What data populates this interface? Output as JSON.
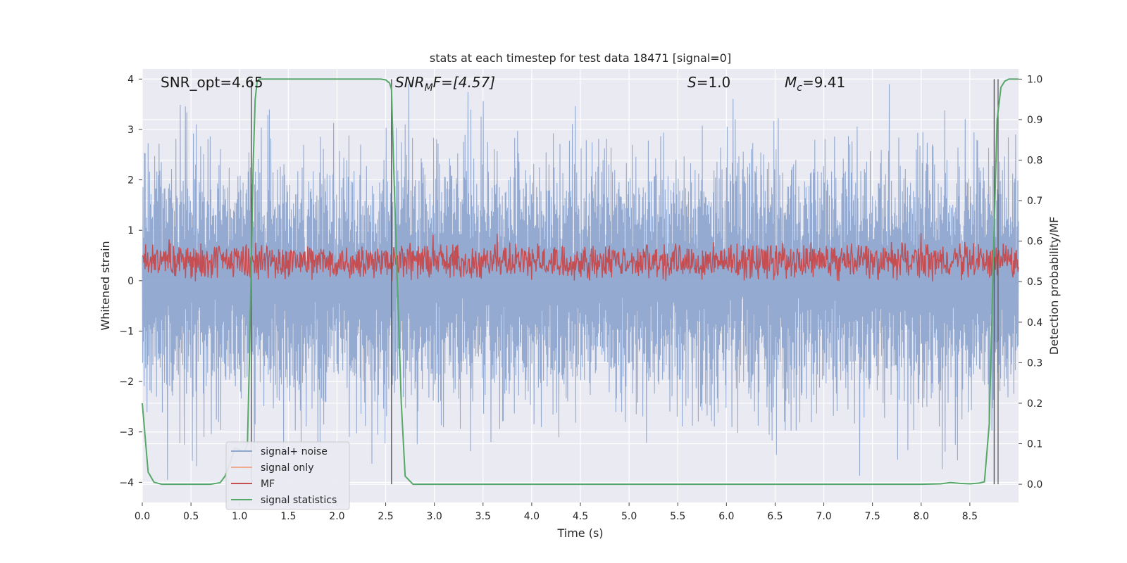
{
  "chart_data": {
    "type": "line",
    "title": "stats at each timestep for test data 18471 [signal=0]",
    "xlabel": "Time (s)",
    "ylabel": "Whitened strain",
    "ylabel_right": "Detection probability/MF",
    "xlim": [
      0.0,
      9.0
    ],
    "ylim": [
      -4.4,
      4.2
    ],
    "ylim_right": [
      -0.045,
      1.025
    ],
    "x_ticks": [
      0.0,
      0.5,
      1.0,
      1.5,
      2.0,
      2.5,
      3.0,
      3.5,
      4.0,
      4.5,
      5.0,
      5.5,
      6.0,
      6.5,
      7.0,
      7.5,
      8.0,
      8.5
    ],
    "x_tick_labels": [
      "0.0",
      "0.5",
      "1.0",
      "1.5",
      "2.0",
      "2.5",
      "3.0",
      "3.5",
      "4.0",
      "4.5",
      "5.0",
      "5.5",
      "6.0",
      "6.5",
      "7.0",
      "7.5",
      "8.0",
      "8.5"
    ],
    "y_ticks": [
      4,
      3,
      2,
      1,
      0,
      -1,
      -2,
      -3,
      -4
    ],
    "y_tick_labels": [
      "4",
      "3",
      "2",
      "1",
      "0",
      "−1",
      "−2",
      "−3",
      "−4"
    ],
    "y_ticks_right": [
      1.0,
      0.9,
      0.8,
      0.7,
      0.6,
      0.5,
      0.4,
      0.3,
      0.2,
      0.1,
      0.0
    ],
    "y_tick_labels_right": [
      "1.0",
      "0.9",
      "0.8",
      "0.7",
      "0.6",
      "0.5",
      "0.4",
      "0.3",
      "0.2",
      "0.1",
      "0.0"
    ],
    "grid": true,
    "annotations": {
      "snr_opt": "SNR_opt=4.65",
      "snr_mf_base": "SNR",
      "snr_mf_sub": "M",
      "snr_mf_rest": "F=[4.57]",
      "s_var": "S",
      "s_rest": "=1.0",
      "mc_var": "M",
      "mc_sub": "c",
      "mc_rest": "=9.41"
    },
    "vertical_lines_x": [
      1.12,
      2.56,
      8.75
    ],
    "series": [
      {
        "name": "signal+ noise",
        "color": "#8fa6cf",
        "axis": "left",
        "description_envelope": {
          "x": [
            0.0,
            9.0
          ],
          "amplitude_typical": 1.5,
          "amplitude_peak": 3.8
        }
      },
      {
        "name": "signal only",
        "color": "#f0a890",
        "axis": "left",
        "x": [],
        "y": []
      },
      {
        "name": "MF",
        "color": "#c44e52",
        "axis": "right",
        "baseline": 0.55,
        "range": [
          0.5,
          0.62
        ]
      },
      {
        "name": "signal statistics",
        "color": "#55a868",
        "axis": "right",
        "x": [
          0.0,
          0.06,
          0.12,
          0.2,
          0.3,
          0.5,
          0.7,
          0.8,
          0.85,
          0.9,
          0.95,
          1.0,
          1.05,
          1.08,
          1.1,
          1.12,
          1.14,
          1.16,
          1.18,
          1.2,
          1.25,
          1.5,
          2.0,
          2.3,
          2.45,
          2.5,
          2.54,
          2.56,
          2.58,
          2.62,
          2.66,
          2.7,
          2.78,
          3.0,
          5.0,
          7.0,
          8.0,
          8.2,
          8.3,
          8.4,
          8.5,
          8.6,
          8.65,
          8.7,
          8.74,
          8.78,
          8.82,
          8.86,
          8.9,
          8.95,
          9.0
        ],
        "y": [
          0.2,
          0.03,
          0.005,
          0.0,
          0.0,
          0.0,
          0.0,
          0.004,
          0.02,
          0.05,
          0.09,
          0.085,
          0.08,
          0.1,
          0.3,
          0.55,
          0.8,
          0.95,
          0.995,
          1.0,
          1.0,
          1.0,
          1.0,
          1.0,
          1.0,
          0.998,
          0.99,
          0.975,
          0.8,
          0.5,
          0.2,
          0.02,
          0.0,
          0.0,
          0.0,
          0.0,
          0.0,
          0.001,
          0.004,
          0.002,
          0.001,
          0.003,
          0.006,
          0.15,
          0.55,
          0.9,
          0.98,
          0.995,
          1.0,
          1.0,
          1.0
        ]
      }
    ],
    "legend": {
      "placement": "lower-left",
      "entries": [
        "signal+ noise",
        "signal only",
        "MF",
        "signal statistics"
      ]
    }
  }
}
